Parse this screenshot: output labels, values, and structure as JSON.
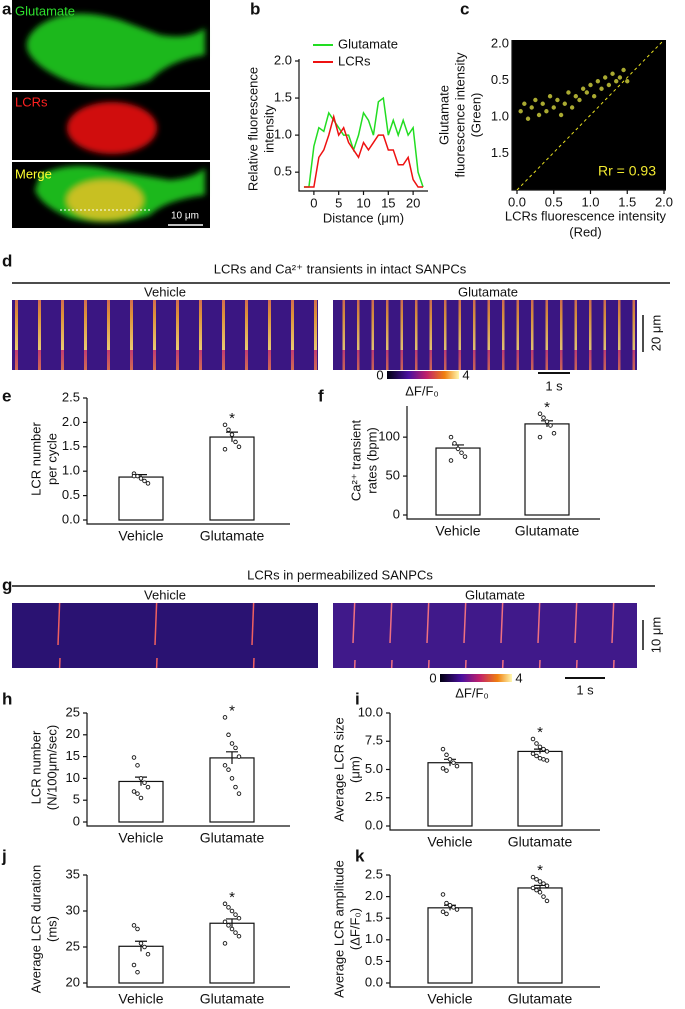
{
  "figure": {
    "panel_a": {
      "letter": "a",
      "glutamate": "Glutamate",
      "lcrs": "LCRs",
      "merge": "Merge",
      "scale": "10 μm"
    },
    "panel_d": {
      "letter": "d",
      "title": "LCRs and Ca²⁺ transients in intact SANPCs",
      "vehicle": "Vehicle",
      "glutamate": "Glutamate",
      "scale_y": "20 μm",
      "cbar_min": 0,
      "cbar_max": 4,
      "cbar_label": "ΔF/F₀",
      "scale_x": "1 s"
    },
    "panel_g": {
      "letter": "g",
      "title": "LCRs in permeabilized SANPCs",
      "vehicle": "Vehicle",
      "glutamate": "Glutamate",
      "scale_y": "10 μm",
      "cbar_min": 0,
      "cbar_max": 4,
      "cbar_label": "ΔF/F₀",
      "scale_x": "1 s"
    }
  },
  "chart_data": [
    {
      "type": "line",
      "panel": "b",
      "xlabel": "Distance (μm)",
      "ylabel": [
        "Relative fluorescence",
        "intensity"
      ],
      "x": [
        -2,
        -1,
        0,
        1,
        2,
        3,
        4,
        5,
        6,
        7,
        8,
        9,
        10,
        11,
        12,
        13,
        14,
        15,
        16,
        17,
        18,
        19,
        20,
        21,
        22
      ],
      "series": [
        {
          "name": "Glutamate",
          "color": "#22dd22",
          "values": [
            0.3,
            0.3,
            0.85,
            1.1,
            1.05,
            1.3,
            1.2,
            1.1,
            1.0,
            1.0,
            0.8,
            1.0,
            1.3,
            1.2,
            1.0,
            1.45,
            1.5,
            1.0,
            1.2,
            1.0,
            1.2,
            1.0,
            1.1,
            0.5,
            0.3
          ]
        },
        {
          "name": "LCRs",
          "color": "#ee1111",
          "values": [
            0.3,
            0.3,
            0.3,
            0.7,
            0.8,
            1.0,
            1.25,
            1.0,
            1.1,
            0.9,
            0.8,
            0.7,
            0.9,
            0.8,
            0.9,
            1.0,
            1.0,
            0.8,
            0.8,
            0.6,
            0.6,
            0.7,
            0.4,
            0.3,
            0.3
          ]
        }
      ],
      "xlim": [
        -3,
        23
      ],
      "xticks": [
        0,
        5,
        10,
        15,
        20
      ],
      "ylim": [
        0.3,
        2.0
      ],
      "yticks": [
        0.5,
        {
          "value": 1.0,
          "label": "1.0"
        },
        1.5,
        {
          "value": 2.0,
          "label": "2.0"
        }
      ]
    },
    {
      "type": "scatter",
      "panel": "c",
      "xlabel": [
        "LCRs fluorescence intensity",
        "(Red)"
      ],
      "ylabel": [
        "Glutamate",
        "fluorescence intensity",
        "(Green)"
      ],
      "color": "#c8c83a",
      "annotation": "Rr = 0.93",
      "x": [
        0.05,
        0.1,
        0.15,
        0.2,
        0.25,
        0.3,
        0.35,
        0.4,
        0.45,
        0.5,
        0.55,
        0.6,
        0.65,
        0.7,
        0.75,
        0.8,
        0.85,
        0.9,
        0.95,
        1.0,
        1.05,
        1.1,
        1.15,
        1.2,
        1.25,
        1.3,
        1.35,
        1.4,
        1.45,
        1.5
      ],
      "y": [
        1.05,
        1.15,
        0.95,
        1.1,
        1.2,
        1.0,
        1.15,
        1.05,
        1.25,
        1.1,
        1.2,
        1.0,
        1.15,
        1.3,
        1.1,
        1.25,
        1.2,
        1.35,
        1.3,
        1.4,
        1.25,
        1.45,
        1.35,
        1.5,
        1.4,
        1.55,
        1.45,
        1.5,
        1.6,
        1.45
      ],
      "xlim": [
        0,
        2.0
      ],
      "xticks": [
        {
          "value": 0,
          "label": "0.0"
        },
        0.5,
        {
          "value": 1,
          "label": "1.0"
        },
        1.5,
        {
          "value": 2,
          "label": "2.0"
        }
      ],
      "ylim": [
        0,
        2.0
      ],
      "yticklabels": [
        "2.0",
        "0.5",
        "1.0",
        "1.5"
      ]
    },
    {
      "type": "bar",
      "panel": "e",
      "ylabel": [
        "LCR number",
        "per cycle"
      ],
      "categories": [
        "Vehicle",
        "Glutamate"
      ],
      "values": [
        0.88,
        1.7
      ],
      "errors": [
        0.05,
        0.1
      ],
      "annotation": "*",
      "points": [
        [
          0.95,
          0.9,
          0.85,
          0.8,
          0.75,
          0.9
        ],
        [
          1.95,
          1.85,
          1.75,
          1.6,
          1.5,
          1.45
        ]
      ],
      "ylim": [
        0,
        2.5
      ],
      "yticks": [
        {
          "value": 0,
          "label": "0.0"
        },
        0.5,
        {
          "value": 1,
          "label": "1.0"
        },
        1.5,
        {
          "value": 2,
          "label": "2.0"
        },
        2.5
      ]
    },
    {
      "type": "bar",
      "panel": "f",
      "ylabel": [
        "Ca²⁺ transient",
        "rates (bpm)"
      ],
      "categories": [
        "Vehicle",
        "Glutamate"
      ],
      "values": [
        86,
        117
      ],
      "errors": [
        4,
        4
      ],
      "annotation": "*",
      "points": [
        [
          100,
          92,
          85,
          80,
          75,
          70
        ],
        [
          130,
          125,
          120,
          115,
          105,
          100
        ]
      ],
      "ylim": [
        0,
        140
      ],
      "yticks": [
        0,
        50,
        100
      ]
    },
    {
      "type": "bar",
      "panel": "h",
      "ylabel": [
        "LCR number",
        "(N/100μm/sec)"
      ],
      "categories": [
        "Vehicle",
        "Glutamate"
      ],
      "values": [
        9.3,
        14.7
      ],
      "errors": [
        1.0,
        1.4
      ],
      "annotation": "*",
      "points": [
        [
          14.8,
          13,
          10,
          9,
          8,
          7,
          6.5,
          5.5
        ],
        [
          24,
          20,
          18,
          17,
          15,
          13,
          12,
          10,
          8,
          6.5
        ]
      ],
      "ylim": [
        0,
        25
      ],
      "yticks": [
        0,
        5,
        10,
        15,
        20,
        25
      ]
    },
    {
      "type": "bar",
      "panel": "i",
      "ylabel": [
        "Average LCR size",
        "(μm)"
      ],
      "categories": [
        "Vehicle",
        "Glutamate"
      ],
      "values": [
        5.6,
        6.6
      ],
      "errors": [
        0.3,
        0.2
      ],
      "annotation": "*",
      "points": [
        [
          6.8,
          6.3,
          5.9,
          5.6,
          5.3,
          5.1,
          4.9
        ],
        [
          7.7,
          7.3,
          7.0,
          6.8,
          6.6,
          6.4,
          6.2,
          6.0,
          5.9,
          5.8
        ]
      ],
      "ylim": [
        0,
        10
      ],
      "yticks": [
        {
          "value": 0,
          "label": "0.0"
        },
        2.5,
        {
          "value": 5,
          "label": "5.0"
        },
        7.5,
        {
          "value": 10,
          "label": "10.0"
        }
      ]
    },
    {
      "type": "bar",
      "panel": "j",
      "ylabel": [
        "Average LCR duration",
        "(ms)"
      ],
      "categories": [
        "Vehicle",
        "Glutamate"
      ],
      "values": [
        25.1,
        28.3
      ],
      "errors": [
        0.7,
        0.6
      ],
      "annotation": "*",
      "points": [
        [
          28,
          27.5,
          25.5,
          25,
          24,
          22.5,
          21.5
        ],
        [
          31,
          30.5,
          30,
          29.5,
          29,
          28.5,
          28,
          27.5,
          27,
          26.5,
          25.5
        ]
      ],
      "ylim": [
        20,
        35
      ],
      "yticks": [
        20,
        25,
        30,
        35
      ]
    },
    {
      "type": "bar",
      "panel": "k",
      "ylabel": [
        "Average LCR amplitude",
        "(ΔF/F₀)"
      ],
      "categories": [
        "Vehicle",
        "Glutamate"
      ],
      "values": [
        1.74,
        2.2
      ],
      "errors": [
        0.06,
        0.06
      ],
      "annotation": "*",
      "points": [
        [
          2.05,
          1.85,
          1.8,
          1.75,
          1.7,
          1.65,
          1.6
        ],
        [
          2.45,
          2.4,
          2.35,
          2.3,
          2.25,
          2.2,
          2.15,
          2.1,
          2.0,
          1.9
        ]
      ],
      "ylim": [
        0,
        2.5
      ],
      "yticks": [
        {
          "value": 0,
          "label": "0.0"
        },
        0.5,
        {
          "value": 1,
          "label": "1.0"
        },
        1.5,
        {
          "value": 2,
          "label": "2.0"
        },
        2.5
      ]
    }
  ]
}
